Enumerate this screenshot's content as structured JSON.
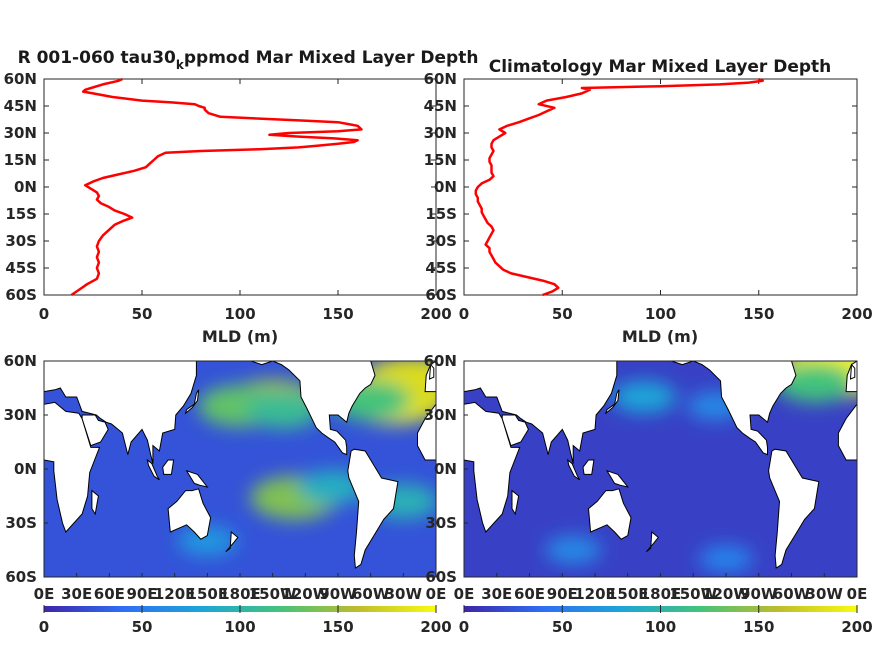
{
  "chart_data": [
    {
      "type": "line",
      "title": "R 001-060 tau30_k ppmod Mar Mixed Layer Depth",
      "title_parts": {
        "main": "R 001-060 tau30",
        "subscript": "k",
        "rest": "ppmod Mar Mixed Layer Depth"
      },
      "xlabel": "MLD (m)",
      "ylabel": "",
      "xlim": [
        0,
        200
      ],
      "ylim": [
        -60,
        60
      ],
      "xticks": [
        0,
        50,
        100,
        150,
        200
      ],
      "yticks": [
        "60N",
        "45N",
        "30N",
        "15N",
        "0N",
        "15S",
        "30S",
        "45S",
        "60S"
      ],
      "color": "#ff0000",
      "series": [
        {
          "points": [
            [
              14,
              -60
            ],
            [
              18,
              -57
            ],
            [
              22,
              -54
            ],
            [
              27,
              -51
            ],
            [
              28,
              -48
            ],
            [
              27,
              -45
            ],
            [
              28,
              -42
            ],
            [
              27,
              -39
            ],
            [
              28,
              -36
            ],
            [
              27,
              -33
            ],
            [
              28,
              -30
            ],
            [
              30,
              -27
            ],
            [
              33,
              -24
            ],
            [
              36,
              -21
            ],
            [
              40,
              -19
            ],
            [
              45,
              -17
            ],
            [
              41,
              -15
            ],
            [
              36,
              -13
            ],
            [
              33,
              -11
            ],
            [
              29,
              -9
            ],
            [
              27,
              -7
            ],
            [
              28,
              -5
            ],
            [
              27,
              -3
            ],
            [
              24,
              -1
            ],
            [
              21,
              1
            ],
            [
              25,
              3
            ],
            [
              30,
              5
            ],
            [
              38,
              7
            ],
            [
              46,
              9
            ],
            [
              52,
              11
            ],
            [
              54,
              13
            ],
            [
              56,
              15
            ],
            [
              58,
              17
            ],
            [
              62,
              19
            ],
            [
              80,
              20
            ],
            [
              110,
              21
            ],
            [
              130,
              22
            ],
            [
              140,
              23
            ],
            [
              150,
              24
            ],
            [
              158,
              25
            ],
            [
              160,
              26
            ],
            [
              148,
              27
            ],
            [
              130,
              28
            ],
            [
              115,
              29
            ],
            [
              125,
              30
            ],
            [
              150,
              31
            ],
            [
              162,
              32
            ],
            [
              160,
              34
            ],
            [
              155,
              35
            ],
            [
              150,
              36
            ],
            [
              130,
              37
            ],
            [
              110,
              38
            ],
            [
              90,
              39
            ],
            [
              84,
              41
            ],
            [
              82,
              43
            ],
            [
              82,
              44
            ],
            [
              79,
              45
            ],
            [
              77,
              46
            ],
            [
              65,
              47
            ],
            [
              50,
              48
            ],
            [
              35,
              50
            ],
            [
              25,
              52
            ],
            [
              20,
              53
            ],
            [
              21,
              54
            ],
            [
              24,
              55
            ],
            [
              30,
              57
            ],
            [
              38,
              59
            ],
            [
              40,
              60
            ]
          ]
        }
      ]
    },
    {
      "type": "line",
      "title": "Climatology Mar Mixed Layer Depth",
      "xlabel": "MLD (m)",
      "ylabel": "",
      "xlim": [
        0,
        200
      ],
      "ylim": [
        -60,
        60
      ],
      "xticks": [
        0,
        50,
        100,
        150,
        200
      ],
      "yticks": [
        "60N",
        "45N",
        "30N",
        "15N",
        "0N",
        "15S",
        "30S",
        "45S",
        "60S"
      ],
      "color": "#ff0000",
      "series": [
        {
          "points": [
            [
              40,
              -60
            ],
            [
              45,
              -58
            ],
            [
              48,
              -56
            ],
            [
              46,
              -54
            ],
            [
              40,
              -52
            ],
            [
              32,
              -50
            ],
            [
              24,
              -48
            ],
            [
              20,
              -46
            ],
            [
              18,
              -44
            ],
            [
              16,
              -42
            ],
            [
              15,
              -40
            ],
            [
              14,
              -38
            ],
            [
              13,
              -36
            ],
            [
              13,
              -34
            ],
            [
              11,
              -32
            ],
            [
              12,
              -30
            ],
            [
              13,
              -28
            ],
            [
              14,
              -26
            ],
            [
              15,
              -24
            ],
            [
              14,
              -22
            ],
            [
              12,
              -20
            ],
            [
              11,
              -18
            ],
            [
              10,
              -16
            ],
            [
              9,
              -14
            ],
            [
              9,
              -12
            ],
            [
              8,
              -10
            ],
            [
              7,
              -8
            ],
            [
              7,
              -6
            ],
            [
              6,
              -4
            ],
            [
              6,
              -2
            ],
            [
              7,
              0
            ],
            [
              9,
              2
            ],
            [
              13,
              4
            ],
            [
              15,
              6
            ],
            [
              14,
              8
            ],
            [
              14,
              10
            ],
            [
              14,
              12
            ],
            [
              13,
              14
            ],
            [
              13,
              16
            ],
            [
              14,
              18
            ],
            [
              15,
              20
            ],
            [
              14,
              22
            ],
            [
              14,
              24
            ],
            [
              15,
              26
            ],
            [
              18,
              28
            ],
            [
              21,
              30
            ],
            [
              18,
              32
            ],
            [
              22,
              34
            ],
            [
              28,
              36
            ],
            [
              33,
              38
            ],
            [
              38,
              40
            ],
            [
              42,
              42
            ],
            [
              46,
              44
            ],
            [
              38,
              46
            ],
            [
              42,
              48
            ],
            [
              52,
              50
            ],
            [
              60,
              52
            ],
            [
              64,
              54
            ],
            [
              60,
              55
            ],
            [
              100,
              56
            ],
            [
              130,
              57
            ],
            [
              145,
              58
            ],
            [
              152,
              59
            ],
            [
              150,
              60
            ]
          ]
        }
      ]
    },
    {
      "type": "heatmap",
      "title": "",
      "xticks": [
        "0E",
        "30E",
        "60E",
        "90E",
        "120E",
        "150E",
        "180E",
        "150W",
        "120W",
        "90W",
        "60W",
        "30W",
        "0E"
      ],
      "yticks": [
        "60N",
        "30N",
        "0N",
        "30S",
        "60S"
      ],
      "colorbar": {
        "ticks": [
          0,
          50,
          100,
          150,
          200
        ],
        "colors": [
          "#3d26a8",
          "#2f6ef4",
          "#1da5d8",
          "#43c37c",
          "#bdbd2c",
          "#f9fb0e"
        ]
      },
      "ocean_level": 25,
      "hotspots": [
        {
          "lon": 210,
          "lat": 37,
          "level": 150
        },
        {
          "lon": 180,
          "lat": 35,
          "level": 130
        },
        {
          "lon": 220,
          "lat": 33,
          "level": 110
        },
        {
          "lon": 320,
          "lat": 40,
          "level": 190
        },
        {
          "lon": 338,
          "lat": 48,
          "level": 180
        },
        {
          "lon": 300,
          "lat": 38,
          "level": 120
        },
        {
          "lon": 230,
          "lat": -16,
          "level": 140
        },
        {
          "lon": 265,
          "lat": -10,
          "level": 90
        },
        {
          "lon": 330,
          "lat": -18,
          "level": 95
        },
        {
          "lon": 150,
          "lat": -40,
          "level": 70
        }
      ]
    },
    {
      "type": "heatmap",
      "title": "",
      "xticks": [
        "0E",
        "30E",
        "60E",
        "90E",
        "120E",
        "150E",
        "180E",
        "150W",
        "120W",
        "90W",
        "60W",
        "30W",
        "0E"
      ],
      "yticks": [
        "60N",
        "30N",
        "0N",
        "30S",
        "60S"
      ],
      "colorbar": {
        "ticks": [
          0,
          50,
          100,
          150,
          200
        ],
        "colors": [
          "#3d26a8",
          "#2f6ef4",
          "#1da5d8",
          "#43c37c",
          "#bdbd2c",
          "#f9fb0e"
        ]
      },
      "ocean_level": 15,
      "hotspots": [
        {
          "lon": 340,
          "lat": 55,
          "level": 195
        },
        {
          "lon": 322,
          "lat": 48,
          "level": 120
        },
        {
          "lon": 165,
          "lat": 40,
          "level": 80
        },
        {
          "lon": 100,
          "lat": 50,
          "level": 70
        },
        {
          "lon": 230,
          "lat": 35,
          "level": 60
        },
        {
          "lon": 100,
          "lat": -45,
          "level": 60
        },
        {
          "lon": 240,
          "lat": -50,
          "level": 55
        }
      ]
    }
  ]
}
